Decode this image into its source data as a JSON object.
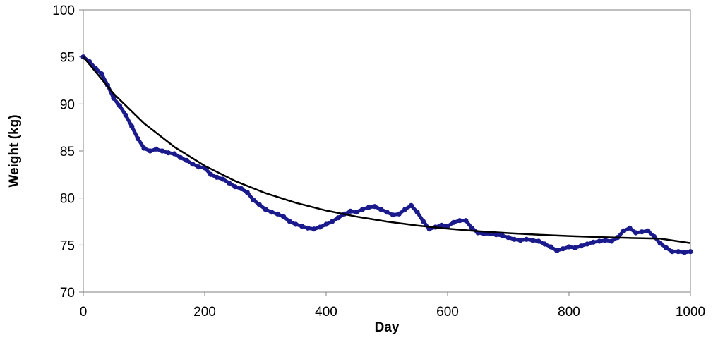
{
  "chart_data": {
    "type": "scatter",
    "title": "",
    "xlabel": "Day",
    "ylabel": "Weight (kg)",
    "xlim": [
      0,
      1000
    ],
    "ylim": [
      70,
      100
    ],
    "x_ticks": [
      0,
      200,
      400,
      600,
      800,
      1000
    ],
    "y_ticks": [
      70,
      75,
      80,
      85,
      90,
      95,
      100
    ],
    "grid": false,
    "legend": "none",
    "colors": {
      "observed": "#1a1a8c",
      "fit": "#000000",
      "axis": "#808080"
    },
    "series": [
      {
        "type": "scatter",
        "points": [
          [
            0,
            95.0
          ],
          [
            10,
            94.5
          ],
          [
            20,
            93.8
          ],
          [
            30,
            93.2
          ],
          [
            40,
            92.0
          ],
          [
            50,
            90.6
          ],
          [
            60,
            89.8
          ],
          [
            70,
            88.8
          ],
          [
            80,
            87.6
          ],
          [
            90,
            86.3
          ],
          [
            100,
            85.3
          ],
          [
            110,
            85.0
          ],
          [
            120,
            85.2
          ],
          [
            130,
            85.0
          ],
          [
            140,
            84.8
          ],
          [
            150,
            84.7
          ],
          [
            160,
            84.3
          ],
          [
            170,
            84.0
          ],
          [
            180,
            83.6
          ],
          [
            190,
            83.3
          ],
          [
            200,
            83.2
          ],
          [
            210,
            82.5
          ],
          [
            220,
            82.2
          ],
          [
            230,
            82.0
          ],
          [
            240,
            81.6
          ],
          [
            250,
            81.2
          ],
          [
            260,
            81.0
          ],
          [
            270,
            80.6
          ],
          [
            280,
            79.8
          ],
          [
            290,
            79.3
          ],
          [
            300,
            78.8
          ],
          [
            310,
            78.5
          ],
          [
            320,
            78.3
          ],
          [
            330,
            78.0
          ],
          [
            340,
            77.5
          ],
          [
            350,
            77.2
          ],
          [
            360,
            77.0
          ],
          [
            370,
            76.8
          ],
          [
            380,
            76.7
          ],
          [
            390,
            76.9
          ],
          [
            400,
            77.2
          ],
          [
            410,
            77.5
          ],
          [
            420,
            77.9
          ],
          [
            430,
            78.3
          ],
          [
            440,
            78.6
          ],
          [
            450,
            78.5
          ],
          [
            460,
            78.8
          ],
          [
            470,
            79.0
          ],
          [
            480,
            79.1
          ],
          [
            490,
            78.8
          ],
          [
            500,
            78.5
          ],
          [
            510,
            78.2
          ],
          [
            520,
            78.3
          ],
          [
            530,
            78.8
          ],
          [
            540,
            79.2
          ],
          [
            550,
            78.5
          ],
          [
            560,
            77.5
          ],
          [
            570,
            76.7
          ],
          [
            580,
            76.9
          ],
          [
            590,
            77.1
          ],
          [
            600,
            77.0
          ],
          [
            610,
            77.4
          ],
          [
            620,
            77.6
          ],
          [
            630,
            77.6
          ],
          [
            640,
            76.8
          ],
          [
            650,
            76.3
          ],
          [
            660,
            76.2
          ],
          [
            670,
            76.2
          ],
          [
            680,
            76.1
          ],
          [
            690,
            76.0
          ],
          [
            700,
            75.8
          ],
          [
            710,
            75.6
          ],
          [
            720,
            75.5
          ],
          [
            730,
            75.6
          ],
          [
            740,
            75.5
          ],
          [
            750,
            75.4
          ],
          [
            760,
            75.1
          ],
          [
            770,
            74.8
          ],
          [
            780,
            74.4
          ],
          [
            790,
            74.6
          ],
          [
            800,
            74.8
          ],
          [
            810,
            74.7
          ],
          [
            820,
            74.9
          ],
          [
            830,
            75.1
          ],
          [
            840,
            75.3
          ],
          [
            850,
            75.4
          ],
          [
            860,
            75.5
          ],
          [
            870,
            75.4
          ],
          [
            880,
            75.8
          ],
          [
            890,
            76.5
          ],
          [
            900,
            76.8
          ],
          [
            910,
            76.3
          ],
          [
            920,
            76.4
          ],
          [
            930,
            76.5
          ],
          [
            940,
            75.9
          ],
          [
            950,
            75.2
          ],
          [
            960,
            74.7
          ],
          [
            970,
            74.3
          ],
          [
            980,
            74.3
          ],
          [
            990,
            74.2
          ],
          [
            1000,
            74.3
          ]
        ]
      },
      {
        "type": "line",
        "points": [
          [
            0,
            95.0
          ],
          [
            50,
            91.09
          ],
          [
            100,
            87.94
          ],
          [
            150,
            85.43
          ],
          [
            200,
            83.42
          ],
          [
            250,
            81.81
          ],
          [
            300,
            80.52
          ],
          [
            350,
            79.49
          ],
          [
            400,
            78.67
          ],
          [
            450,
            78.02
          ],
          [
            500,
            77.49
          ],
          [
            550,
            77.07
          ],
          [
            600,
            76.74
          ],
          [
            650,
            76.47
          ],
          [
            700,
            76.26
          ],
          [
            750,
            76.09
          ],
          [
            800,
            75.95
          ],
          [
            850,
            75.84
          ],
          [
            900,
            75.75
          ],
          [
            950,
            75.68
          ],
          [
            1000,
            75.2
          ]
        ]
      }
    ]
  }
}
